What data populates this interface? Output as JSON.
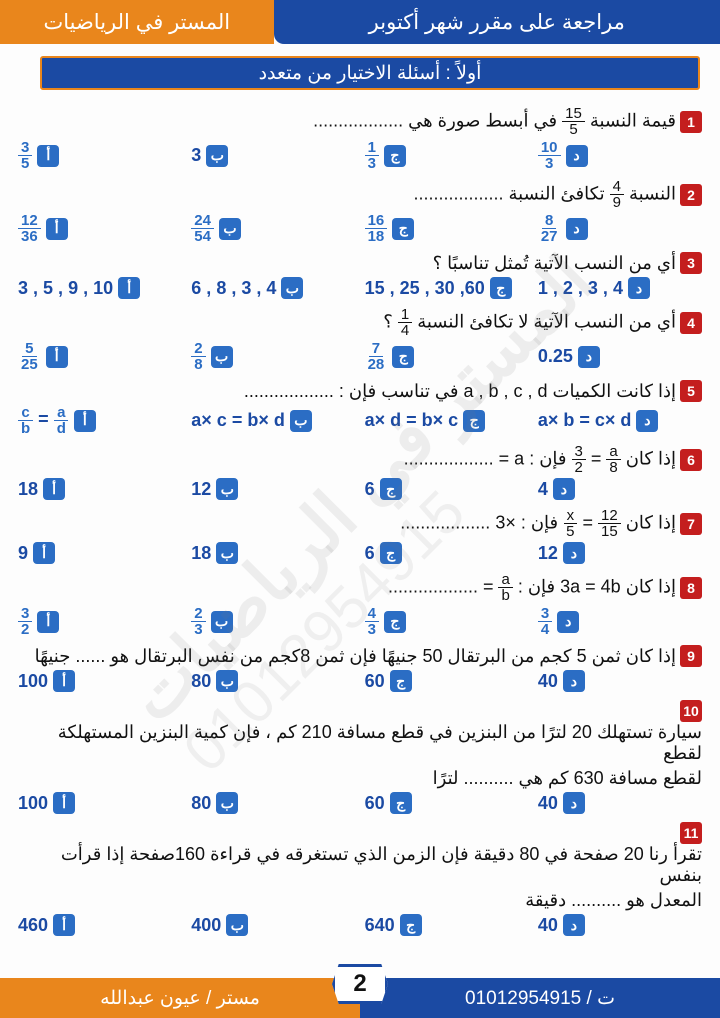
{
  "colors": {
    "orange": "#e9861c",
    "blue": "#1b4aa3",
    "red": "#c41e1e",
    "optblue": "#2b6dc4",
    "bg": "#fdfdfd"
  },
  "header": {
    "right": "المستر في الرياضيات",
    "left": "مراجعة على مقرر شهر أكتوبر"
  },
  "section_title": "أولاً : أسئلة الاختيار من متعدد",
  "letters": [
    "أ",
    "ب",
    "ج",
    "د"
  ],
  "questions": [
    {
      "n": "1",
      "text_pre": "قيمة النسبة ",
      "frac": {
        "n": "15",
        "d": "5"
      },
      "text_post": " في أبسط صورة هي ..................",
      "opts": [
        {
          "frac": {
            "n": "3",
            "d": "5"
          }
        },
        {
          "t": "3"
        },
        {
          "frac": {
            "n": "1",
            "d": "3"
          }
        },
        {
          "frac": {
            "n": "10",
            "d": "3"
          }
        }
      ]
    },
    {
      "n": "2",
      "text_pre": "النسبة ",
      "frac": {
        "n": "4",
        "d": "9"
      },
      "text_post": " تكافئ النسبة ..................",
      "opts": [
        {
          "frac": {
            "n": "12",
            "d": "36"
          }
        },
        {
          "frac": {
            "n": "24",
            "d": "54"
          }
        },
        {
          "frac": {
            "n": "16",
            "d": "18"
          }
        },
        {
          "frac": {
            "n": "8",
            "d": "27"
          }
        }
      ]
    },
    {
      "n": "3",
      "text": "أي من النسب الآتية تُمثل تناسبًا ؟",
      "opts": [
        {
          "t": "10 , 9 , 5 , 3"
        },
        {
          "t": "4 , 3 , 8 , 6"
        },
        {
          "t": "60, 30 , 25 , 15"
        },
        {
          "t": "4 , 3 , 2 , 1"
        }
      ]
    },
    {
      "n": "4",
      "text_pre": "أي من النسب الآتية لا تكافئ النسبة ",
      "frac": {
        "n": "1",
        "d": "4"
      },
      "text_post": " ؟",
      "opts": [
        {
          "frac": {
            "n": "5",
            "d": "25"
          }
        },
        {
          "frac": {
            "n": "2",
            "d": "8"
          }
        },
        {
          "frac": {
            "n": "7",
            "d": "28"
          }
        },
        {
          "t": "0.25"
        }
      ]
    },
    {
      "n": "5",
      "text": "إذا كانت الكميات a , b , c , d في تناسب فإن : ..................",
      "opts": [
        {
          "eq": [
            "a",
            "d",
            "c",
            "b"
          ]
        },
        {
          "t": "a× c = b× d"
        },
        {
          "t": "a× d = b× c"
        },
        {
          "t": "a× b = c× d"
        }
      ]
    },
    {
      "n": "6",
      "text_pre": "إذا كان ",
      "frac": {
        "n": "a",
        "d": "8"
      },
      "text_mid": " = ",
      "frac2": {
        "n": "3",
        "d": "2"
      },
      "text_post": " فإن : a = ..................",
      "opts": [
        {
          "t": "18"
        },
        {
          "t": "12"
        },
        {
          "t": "6"
        },
        {
          "t": "4"
        }
      ]
    },
    {
      "n": "7",
      "text_pre": "إذا كان ",
      "frac": {
        "n": "12",
        "d": "15"
      },
      "text_mid": " = ",
      "frac2": {
        "n": "x",
        "d": "5"
      },
      "text_post": " فإن : ×3 ..................",
      "opts": [
        {
          "t": "9"
        },
        {
          "t": "18"
        },
        {
          "t": "6"
        },
        {
          "t": "12"
        }
      ]
    },
    {
      "n": "8",
      "text_pre": "إذا كان 3a = 4b فإن : ",
      "frac": {
        "n": "a",
        "d": "b"
      },
      "text_post": " = ..................",
      "opts": [
        {
          "frac": {
            "n": "3",
            "d": "2"
          }
        },
        {
          "frac": {
            "n": "2",
            "d": "3"
          }
        },
        {
          "frac": {
            "n": "4",
            "d": "3"
          }
        },
        {
          "frac": {
            "n": "3",
            "d": "4"
          }
        }
      ]
    },
    {
      "n": "9",
      "text": "إذا كان ثمن 5 كجم من البرتقال 50 جنيهًا فإن ثمن 8كجم من نفس البرتقال هو ...... جنيهًا",
      "opts": [
        {
          "t": "100"
        },
        {
          "t": "80"
        },
        {
          "t": "60"
        },
        {
          "t": "40"
        }
      ]
    },
    {
      "n": "10",
      "text": "سيارة تستهلك 20 لترًا من البنزين في قطع مسافة 210 كم ، فإن كمية البنزين المستهلكة لقطع",
      "text2": "لقطع مسافة 630 كم هي .......... لترًا",
      "opts": [
        {
          "t": "100"
        },
        {
          "t": "80"
        },
        {
          "t": "60"
        },
        {
          "t": "40"
        }
      ]
    },
    {
      "n": "11",
      "text": "تقرأ رنا 20 صفحة في 80 دقيقة فإن الزمن الذي تستغرقه في قراءة 160صفحة إذا قرأت بنفس",
      "text2": "المعدل هو .......... دقيقة",
      "opts": [
        {
          "t": "460"
        },
        {
          "t": "400"
        },
        {
          "t": "640"
        },
        {
          "t": "40"
        }
      ]
    }
  ],
  "footer": {
    "right": "مستر / عيون عبدالله",
    "left": "ت / 01012954915",
    "page": "2"
  },
  "watermark": "المستر في الرياضيات",
  "watermark2": "01012954915"
}
